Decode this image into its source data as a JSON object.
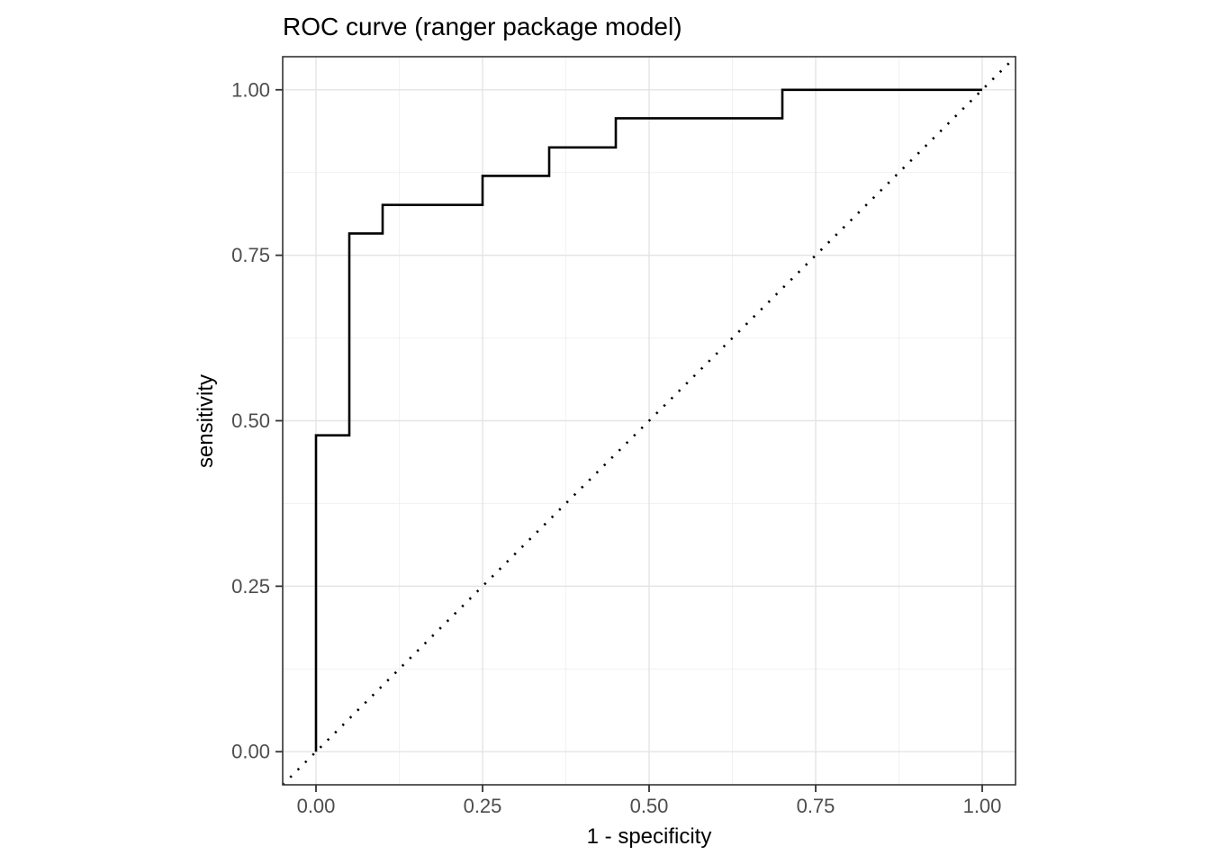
{
  "title": "ROC curve (ranger package model)",
  "chart_data": {
    "type": "line",
    "title": "ROC curve (ranger package model)",
    "xlabel": "1 - specificity",
    "ylabel": "sensitivity",
    "xlim": [
      -0.05,
      1.05
    ],
    "ylim": [
      -0.05,
      1.05
    ],
    "x_ticks": [
      0.0,
      0.25,
      0.5,
      0.75,
      1.0
    ],
    "y_ticks": [
      0.0,
      0.25,
      0.5,
      0.75,
      1.0
    ],
    "x_tick_labels": [
      "0.00",
      "0.25",
      "0.50",
      "0.75",
      "1.00"
    ],
    "y_tick_labels": [
      "0.00",
      "0.25",
      "0.50",
      "0.75",
      "1.00"
    ],
    "minor_breaks_x": [
      0.125,
      0.375,
      0.625,
      0.875
    ],
    "minor_breaks_y": [
      0.125,
      0.375,
      0.625,
      0.875
    ],
    "grid": true,
    "legend": "none",
    "series": [
      {
        "name": "roc-step-curve",
        "type": "step",
        "color": "#000000",
        "stroke_width": 2.6,
        "points": [
          [
            0.0,
            0.0
          ],
          [
            0.0,
            0.478
          ],
          [
            0.05,
            0.478
          ],
          [
            0.05,
            0.783
          ],
          [
            0.1,
            0.783
          ],
          [
            0.1,
            0.826
          ],
          [
            0.25,
            0.826
          ],
          [
            0.25,
            0.87
          ],
          [
            0.35,
            0.87
          ],
          [
            0.35,
            0.913
          ],
          [
            0.45,
            0.913
          ],
          [
            0.45,
            0.957
          ],
          [
            0.7,
            0.957
          ],
          [
            0.7,
            1.0
          ],
          [
            1.0,
            1.0
          ]
        ]
      },
      {
        "name": "chance-diagonal",
        "type": "dotted-line",
        "color": "#000000",
        "stroke_width": 2.6,
        "points": [
          [
            -0.05,
            -0.05
          ],
          [
            1.05,
            1.05
          ]
        ]
      }
    ],
    "panel": {
      "background": "#FFFFFF",
      "border_color": "#333333",
      "grid_major_color": "#E4E4E4",
      "grid_minor_color": "#F0F0F0",
      "tick_color": "#333333"
    },
    "text_colors": {
      "title": "#000000",
      "axis_title": "#000000",
      "tick_label": "#4D4D4D"
    }
  }
}
